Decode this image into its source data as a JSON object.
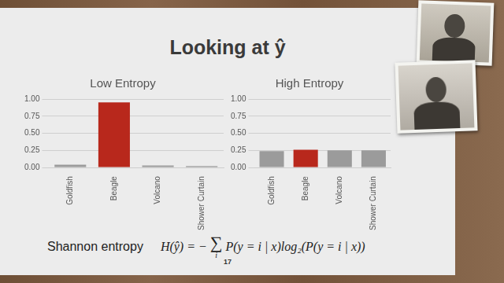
{
  "slide": {
    "title": "Looking at ŷ",
    "page_number": 17,
    "formula_name": "Shannon entropy",
    "formula": {
      "lhs": "H(ŷ) = −",
      "sum": "∑",
      "sum_index": "i",
      "body": "P(y = i | x)log₂(P(y = i | x))"
    }
  },
  "chart_data": [
    {
      "type": "bar",
      "title": "Low Entropy",
      "categories": [
        "Goldfish",
        "Beagle",
        "Volcano",
        "Shower Curtain"
      ],
      "values": [
        0.04,
        0.95,
        0.03,
        0.02
      ],
      "colors": [
        "#9b9b9b",
        "#b8281c",
        "#9b9b9b",
        "#9b9b9b"
      ],
      "ylim": [
        0,
        1
      ],
      "yticks": [
        {
          "value": 0,
          "label": "0.00"
        },
        0.25,
        {
          "value": 0.5,
          "label": "0.50"
        },
        0.75,
        {
          "value": 1,
          "label": "1.00"
        }
      ],
      "grid": true
    },
    {
      "type": "bar",
      "title": "High Entropy",
      "categories": [
        "Goldfish",
        "Beagle",
        "Volcano",
        "Shower Curtain"
      ],
      "values": [
        0.24,
        0.26,
        0.25,
        0.25
      ],
      "colors": [
        "#9b9b9b",
        "#b8281c",
        "#9b9b9b",
        "#9b9b9b"
      ],
      "ylim": [
        0,
        1
      ],
      "yticks": [
        {
          "value": 0,
          "label": "0.00"
        },
        0.25,
        {
          "value": 0.5,
          "label": "0.50"
        },
        0.75,
        {
          "value": 1,
          "label": "1.00"
        }
      ],
      "grid": true
    }
  ]
}
